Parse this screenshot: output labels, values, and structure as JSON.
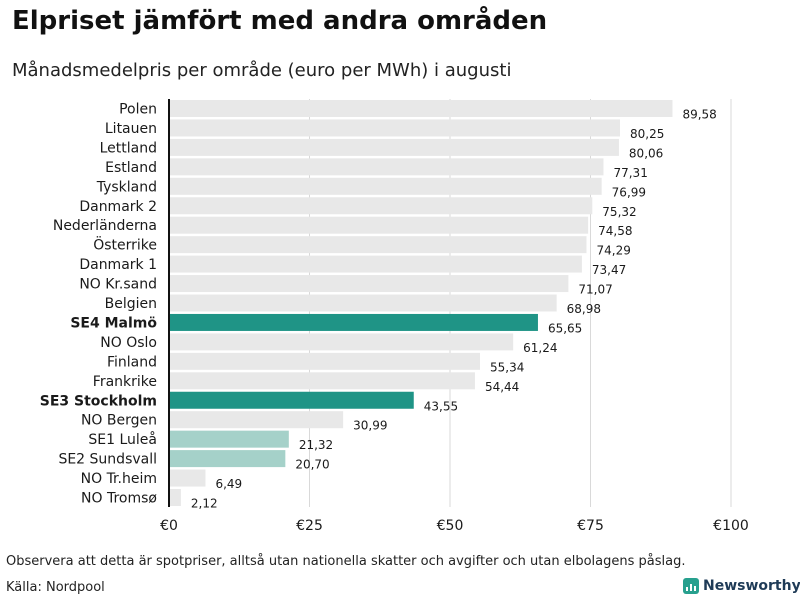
{
  "chart_data": {
    "type": "bar",
    "orientation": "horizontal",
    "title": "Elpriset jämfört med andra områden",
    "subtitle": "Månadsmedelpris per område (euro per MWh) i augusti",
    "categories": [
      "Polen",
      "Litauen",
      "Lettland",
      "Estland",
      "Tyskland",
      "Danmark  2",
      "Nederländerna",
      "Österrike",
      "Danmark  1",
      "NO Kr.sand",
      "Belgien",
      "SE4 Malmö",
      "NO Oslo",
      "Finland",
      "Frankrike",
      "SE3 Stockholm",
      "NO Bergen",
      "SE1  Luleå",
      "SE2  Sundsvall",
      "NO Tr.heim",
      "NO Tromsø"
    ],
    "values": [
      89.58,
      80.25,
      80.06,
      77.31,
      76.99,
      75.32,
      74.58,
      74.29,
      73.47,
      71.07,
      68.98,
      65.65,
      61.24,
      55.34,
      54.44,
      43.55,
      30.99,
      21.32,
      20.7,
      6.49,
      2.12
    ],
    "value_labels": [
      "89,58",
      "80,25",
      "80,06",
      "77,31",
      "76,99",
      "75,32",
      "74,58",
      "74,29",
      "73,47",
      "71,07",
      "68,98",
      "65,65",
      "61,24",
      "55,34",
      "54,44",
      "43,55",
      "30,99",
      "21,32",
      "20,70",
      "6,49",
      "2,12"
    ],
    "highlight": [
      "default",
      "default",
      "default",
      "default",
      "default",
      "default",
      "default",
      "default",
      "default",
      "default",
      "default",
      "strong",
      "default",
      "default",
      "default",
      "strong",
      "default",
      "light",
      "light",
      "default",
      "default"
    ],
    "colors": {
      "default": "#e8e8e8",
      "strong": "#1f9486",
      "light": "#a5d1c9",
      "axis": "#111111",
      "grid": "#d9d9d9"
    },
    "xlim": [
      0,
      100
    ],
    "xticks": [
      0,
      25,
      50,
      75,
      100
    ],
    "xtick_labels": [
      "€0",
      "€25",
      "€50",
      "€75",
      "€100"
    ],
    "xlabel": "",
    "ylabel": "",
    "grid": true
  },
  "footer": {
    "note": "Observera att detta är spotpriser, alltså utan nationella skatter och avgifter och utan elbolagens påslag.",
    "source": "Källa: Nordpool",
    "brand": "Newsworthy"
  }
}
